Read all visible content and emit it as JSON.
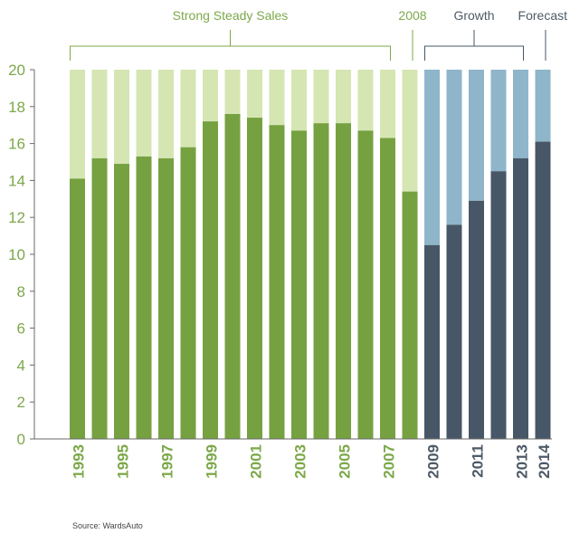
{
  "chart_data": {
    "type": "bar",
    "stacked_to_total": true,
    "categories": [
      "1993",
      "1994",
      "1995",
      "1996",
      "1997",
      "1998",
      "1999",
      "2000",
      "2001",
      "2002",
      "2003",
      "2004",
      "2005",
      "2006",
      "2007",
      "2008",
      "2009",
      "2010",
      "2011",
      "2012",
      "2013",
      "2014"
    ],
    "tick_labels": [
      "1993",
      "",
      "1995",
      "",
      "1997",
      "",
      "1999",
      "",
      "2001",
      "",
      "2003",
      "",
      "2005",
      "",
      "2007",
      "",
      "2009",
      "",
      "2011",
      "",
      "2013",
      "2014"
    ],
    "values": [
      14.1,
      15.2,
      14.9,
      15.3,
      15.2,
      15.8,
      17.2,
      17.6,
      17.4,
      17.0,
      16.7,
      17.1,
      17.1,
      16.7,
      16.3,
      13.4,
      10.5,
      11.6,
      12.9,
      14.5,
      15.2,
      16.1
    ],
    "total": 20,
    "ylim": [
      0,
      20
    ],
    "yticks": [
      0,
      2,
      4,
      6,
      8,
      10,
      12,
      14,
      16,
      18,
      20
    ],
    "grid": false,
    "xlabel": "",
    "ylabel": "",
    "period_colors": {
      "green_dark": "#76a141",
      "green_light": "#d5e6b3",
      "blue_dark": "#475767",
      "blue_light": "#8fb5ca",
      "green_text": "#7ca84a",
      "blue_text": "#4d5a66"
    },
    "groups": [
      {
        "label": "Strong Steady Sales",
        "from": "1993",
        "to": "2007",
        "palette": "green"
      },
      {
        "label": "2008",
        "from": "2008",
        "to": "2008",
        "palette": "green"
      },
      {
        "label": "Growth",
        "from": "2009",
        "to": "2013",
        "palette": "blue"
      },
      {
        "label": "Forecast",
        "from": "2014",
        "to": "2014",
        "palette": "blue"
      }
    ]
  },
  "source": "Source: WardsAuto"
}
